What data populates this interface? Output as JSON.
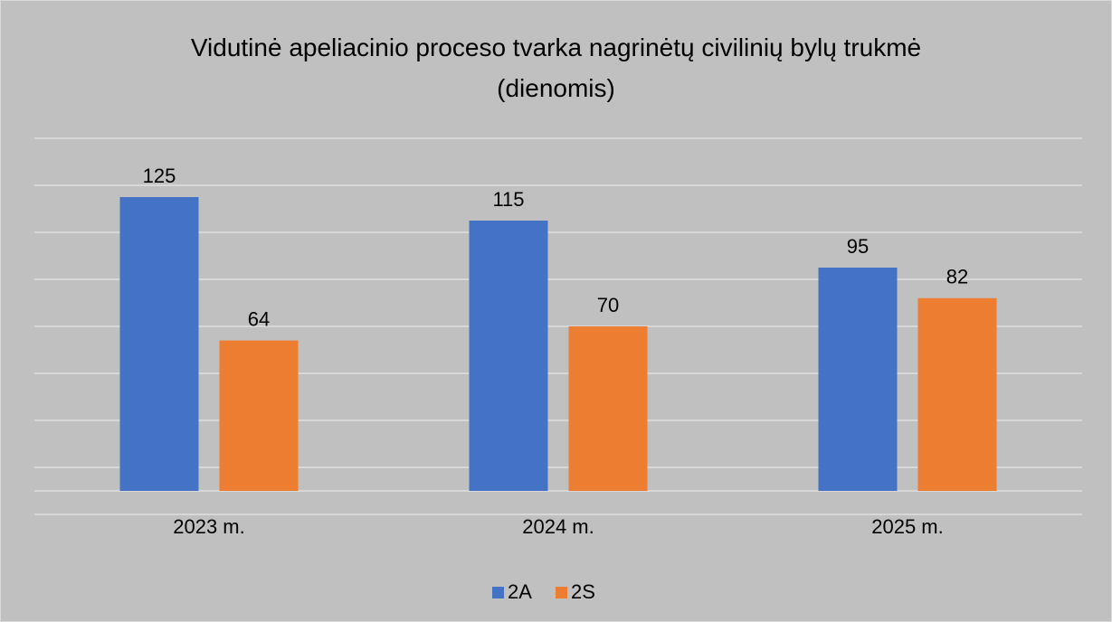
{
  "chart_data": {
    "type": "bar",
    "title": "Vidutinė apeliacinio proceso tvarka nagrinėtų civilinių bylų trukmė (dienomis)",
    "categories": [
      "2023 m.",
      "2024 m.",
      "2025 m."
    ],
    "series": [
      {
        "name": "2A",
        "color": "#4472c4",
        "values": [
          125,
          115,
          95
        ]
      },
      {
        "name": "2S",
        "color": "#ed7d31",
        "values": [
          64,
          70,
          82
        ]
      }
    ],
    "ylim": [
      -10,
      150
    ],
    "yticks": [
      -10,
      0,
      10,
      30,
      50,
      70,
      90,
      110,
      130,
      150
    ],
    "grid": true,
    "legend": "bottom"
  }
}
